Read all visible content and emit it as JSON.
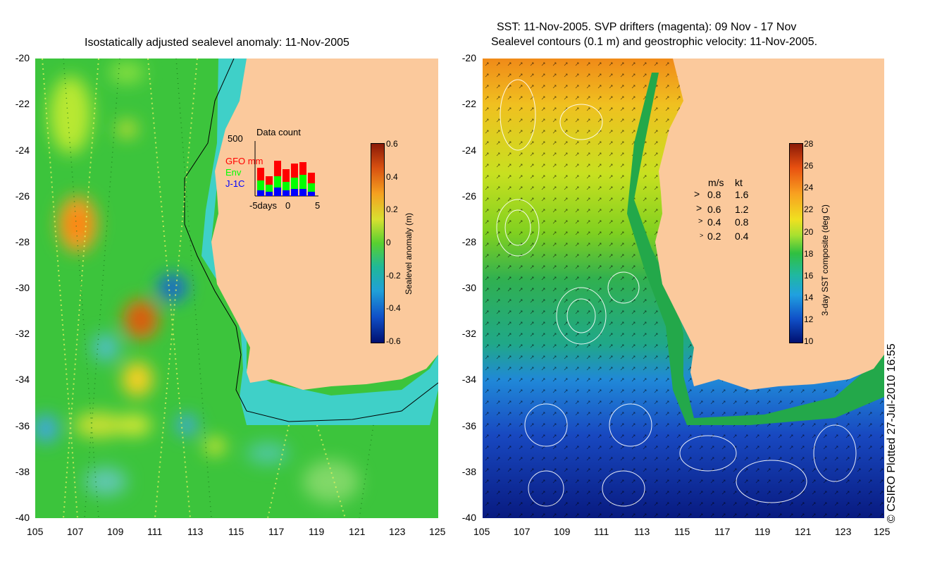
{
  "left_panel": {
    "title": "Isostatically adjusted sealevel anomaly: 11-Nov-2005",
    "colorbar": {
      "title": "Sealevel anomaly (m)",
      "ticks": [
        "0.6",
        "0.4",
        "0.2",
        "0",
        "-0.2",
        "-0.4",
        "-0.6"
      ]
    },
    "inset": {
      "title": "Data count",
      "ymax_label": "500",
      "series": [
        {
          "name": "GFO mm",
          "color": "#ff0000"
        },
        {
          "name": "Env",
          "color": "#00ff00"
        },
        {
          "name": "J-1C",
          "color": "#0000ff"
        }
      ],
      "xticks": [
        "-5days",
        "0",
        "5"
      ]
    }
  },
  "right_panel": {
    "title_line1": "SST: 11-Nov-2005. SVP drifters (magenta): 09 Nov - 17 Nov",
    "title_line2": "Sealevel contours (0.1 m) and geostrophic velocity: 11-Nov-2005.",
    "colorbar": {
      "title": "3-day SST composite (deg C)",
      "ticks": [
        "28",
        "26",
        "24",
        "22",
        "20",
        "18",
        "16",
        "14",
        "12",
        "10"
      ]
    },
    "velocity_legend": {
      "header_ms": "m/s",
      "header_kt": "kt",
      "rows": [
        {
          "ms": "0.8",
          "kt": "1.6"
        },
        {
          "ms": "0.6",
          "kt": "1.2"
        },
        {
          "ms": "0.4",
          "kt": "0.8"
        },
        {
          "ms": "0.2",
          "kt": "0.4"
        }
      ]
    }
  },
  "axes": {
    "y_ticks": [
      "-20",
      "-22",
      "-24",
      "-26",
      "-28",
      "-30",
      "-32",
      "-34",
      "-36",
      "-38",
      "-40"
    ],
    "x_ticks": [
      "105",
      "107",
      "109",
      "111",
      "113",
      "115",
      "117",
      "119",
      "121",
      "123",
      "125"
    ]
  },
  "credit": "© CSIRO Plotted 27-Jul-2010 16:55",
  "colors": {
    "land": "#fbc99c",
    "ocean_green": "#22c24a",
    "shelf_cyan": "#3fd0c8"
  }
}
